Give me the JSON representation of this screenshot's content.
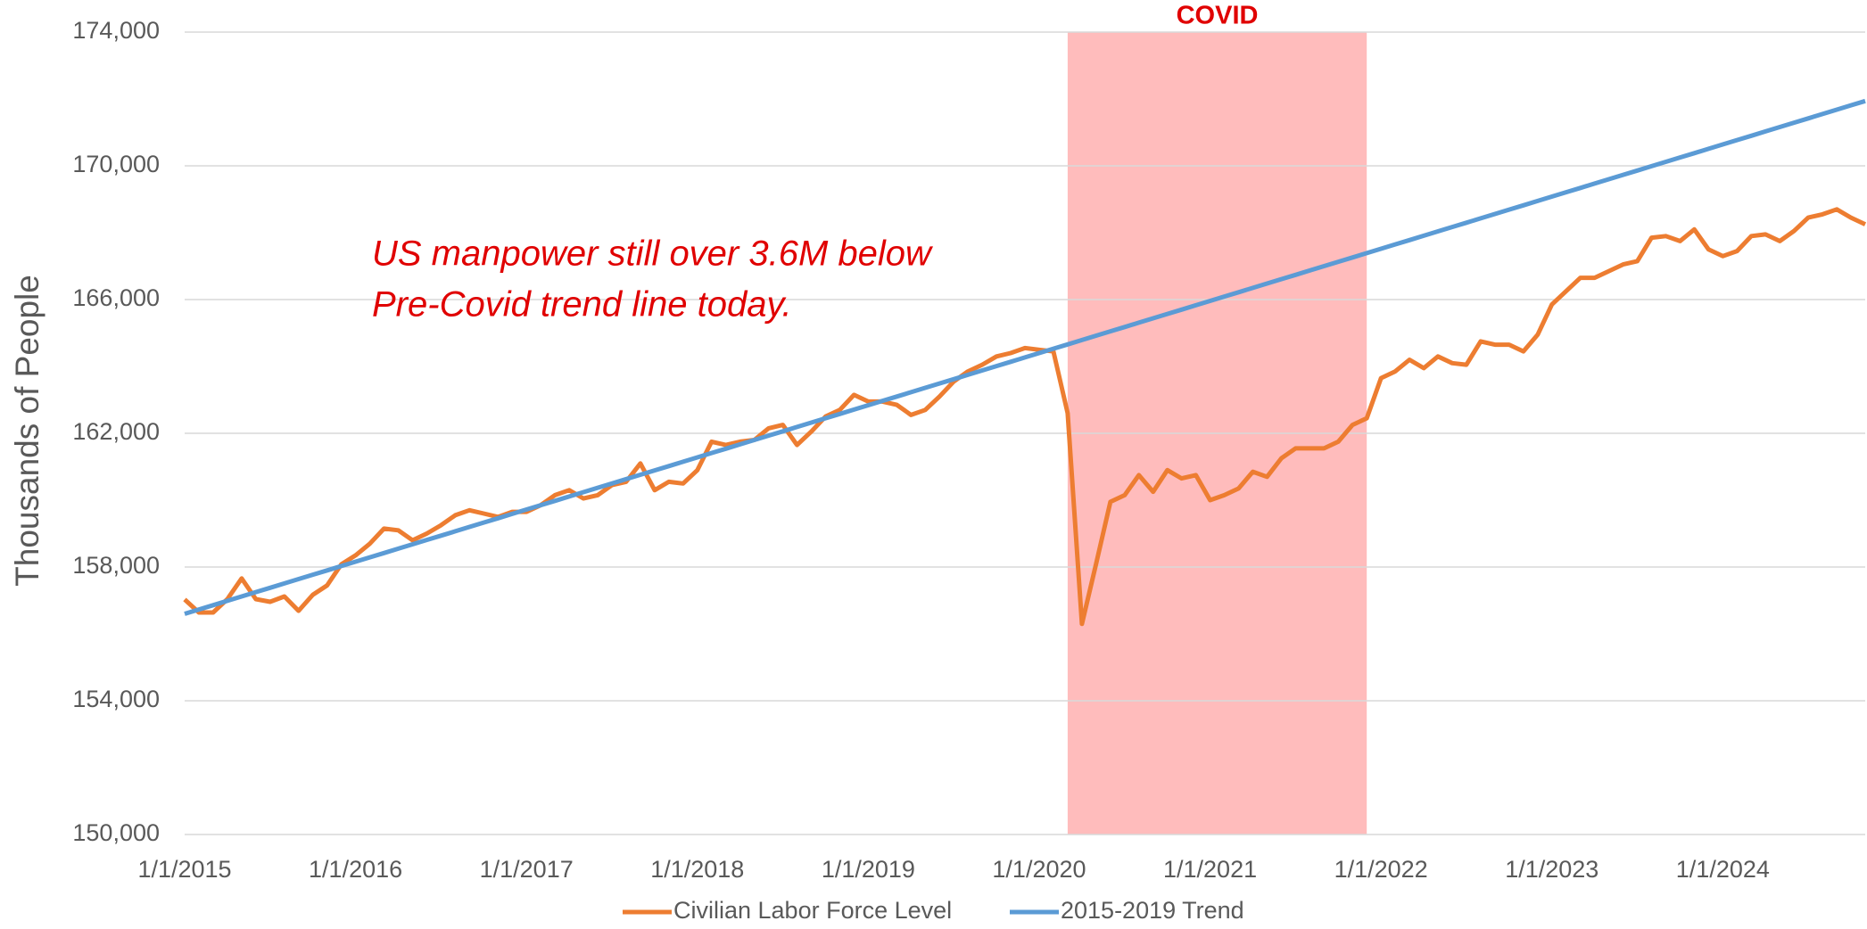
{
  "chart_data": {
    "type": "line",
    "y_label": "Thousands of People",
    "annotation": "US manpower still over 3.6M below\nPre-Covid trend line today.",
    "shaded_range": {
      "label": "COVID",
      "from": 62,
      "to": 83,
      "color": "#ffbcbc"
    },
    "categories": [
      "1/1/2015",
      null,
      null,
      null,
      null,
      null,
      null,
      null,
      null,
      null,
      null,
      null,
      "1/1/2016",
      null,
      null,
      null,
      null,
      null,
      null,
      null,
      null,
      null,
      null,
      null,
      "1/1/2017",
      null,
      null,
      null,
      null,
      null,
      null,
      null,
      null,
      null,
      null,
      null,
      "1/1/2018",
      null,
      null,
      null,
      null,
      null,
      null,
      null,
      null,
      null,
      null,
      null,
      "1/1/2019",
      null,
      null,
      null,
      null,
      null,
      null,
      null,
      null,
      null,
      null,
      null,
      "1/1/2020",
      null,
      null,
      null,
      null,
      null,
      null,
      null,
      null,
      null,
      null,
      null,
      "1/1/2021",
      null,
      null,
      null,
      null,
      null,
      null,
      null,
      null,
      null,
      null,
      null,
      "1/1/2022",
      null,
      null,
      null,
      null,
      null,
      null,
      null,
      null,
      null,
      null,
      null,
      "1/1/2023",
      null,
      null,
      null,
      null,
      null,
      null,
      null,
      null,
      null,
      null,
      null,
      "1/1/2024",
      null,
      null,
      null,
      null,
      null,
      null,
      null,
      null,
      null,
      null
    ],
    "series": [
      {
        "name": "Civilian Labor Force Level",
        "color": "#ed7d31",
        "values": [
          157030,
          156640,
          156640,
          157040,
          157660,
          157040,
          156960,
          157120,
          156690,
          157170,
          157450,
          158080,
          158350,
          158700,
          159150,
          159100,
          158800,
          159000,
          159250,
          159550,
          159700,
          159600,
          159500,
          159650,
          159650,
          159850,
          160150,
          160300,
          160050,
          160150,
          160450,
          160550,
          161100,
          160300,
          160550,
          160500,
          160900,
          161750,
          161650,
          161750,
          161800,
          162150,
          162250,
          161650,
          162050,
          162500,
          162700,
          163150,
          162950,
          162950,
          162850,
          162550,
          162700,
          163100,
          163550,
          163850,
          164050,
          164300,
          164400,
          164550,
          164500,
          164450,
          162600,
          156300,
          158100,
          159950,
          160150,
          160750,
          160250,
          160900,
          160650,
          160750,
          160000,
          160150,
          160350,
          160850,
          160700,
          161250,
          161550,
          161550,
          161550,
          161750,
          162250,
          162450,
          163650,
          163850,
          164200,
          163950,
          164300,
          164100,
          164050,
          164750,
          164650,
          164650,
          164450,
          164950,
          165850,
          166250,
          166650,
          166650,
          166850,
          167050,
          167150,
          167850,
          167900,
          167750,
          168100,
          167500,
          167300,
          167450,
          167900,
          167950,
          167750,
          168050,
          168450,
          168550,
          168700,
          168450,
          168250
        ]
      },
      {
        "name": "2015-2019 Trend",
        "color": "#5b9bd5",
        "values": [
          156600,
          156730,
          156860,
          156990,
          157120,
          157250,
          157380,
          157510,
          157640,
          157770,
          157900,
          158030,
          158160,
          158290,
          158420,
          158550,
          158680,
          158810,
          158940,
          159070,
          159200,
          159330,
          159460,
          159590,
          159720,
          159850,
          159980,
          160110,
          160240,
          160370,
          160500,
          160630,
          160760,
          160890,
          161020,
          161150,
          161280,
          161410,
          161540,
          161670,
          161800,
          161930,
          162060,
          162190,
          162320,
          162450,
          162580,
          162710,
          162840,
          162970,
          163100,
          163230,
          163360,
          163490,
          163620,
          163750,
          163880,
          164010,
          164140,
          164270,
          164400,
          164530,
          164660,
          164790,
          164920,
          165050,
          165180,
          165310,
          165440,
          165570,
          165700,
          165830,
          165960,
          166090,
          166220,
          166350,
          166480,
          166610,
          166740,
          166870,
          167000,
          167130,
          167260,
          167390,
          167520,
          167650,
          167780,
          167910,
          168040,
          168170,
          168300,
          168430,
          168560,
          168690,
          168820,
          168950,
          169080,
          169210,
          169340,
          169470,
          169600,
          169730,
          169860,
          169990,
          170120,
          170250,
          170380,
          170510,
          170640,
          170770,
          170900,
          171030,
          171160,
          171290,
          171420,
          171550,
          171680,
          171810,
          171940
        ]
      }
    ],
    "ylim": [
      150000,
      174000
    ],
    "yticks": [
      {
        "value": 150000,
        "label": "150,000"
      },
      {
        "value": 154000,
        "label": "154,000"
      },
      {
        "value": 158000,
        "label": "158,000"
      },
      {
        "value": 162000,
        "label": "162,000"
      },
      {
        "value": 166000,
        "label": "166,000"
      },
      {
        "value": 170000,
        "label": "170,000"
      },
      {
        "value": 174000,
        "label": "174,000"
      }
    ],
    "grid": true,
    "legend": "bottom"
  }
}
